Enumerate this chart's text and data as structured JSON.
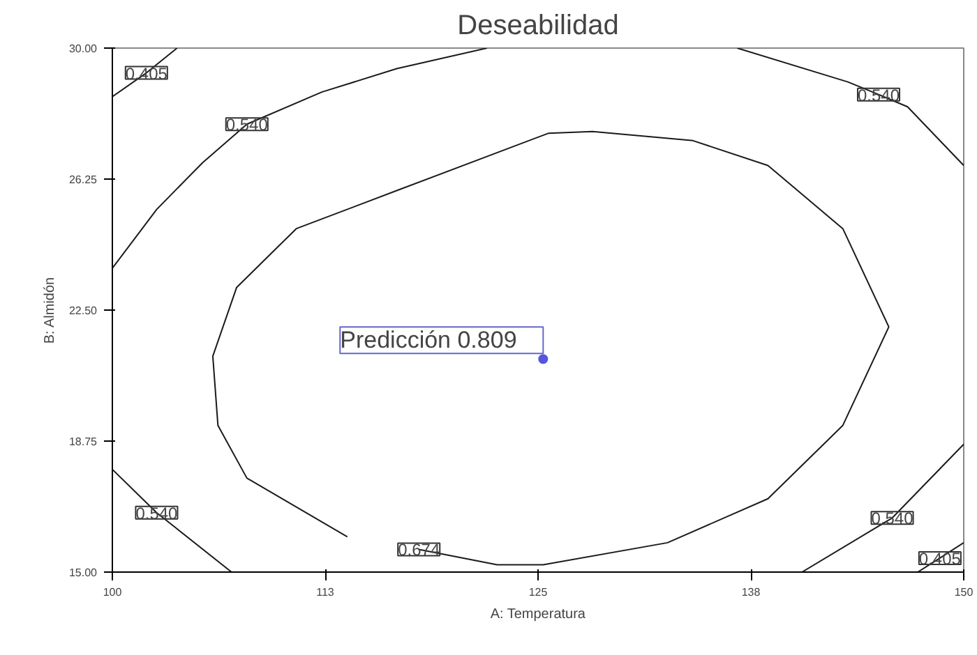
{
  "chart_data": {
    "type": "line",
    "title": "Deseabilidad",
    "xlabel": "A: Temperatura",
    "ylabel": "B: Almidón",
    "xlim": [
      100,
      150
    ],
    "ylim": [
      15,
      30
    ],
    "xticks": [
      100,
      {
        "value": 112.5,
        "label": "113"
      },
      125,
      {
        "value": 137.5,
        "label": "138"
      },
      150
    ],
    "yticks": [
      {
        "value": 15,
        "label": "15.00"
      },
      18.75,
      {
        "value": 22.5,
        "label": "22.50"
      },
      26.25,
      {
        "value": 30,
        "label": "30.00"
      }
    ],
    "grid": false,
    "line_style": "solid",
    "marker": "none",
    "series": [
      {
        "color": "#1a1a1a",
        "x": [
          100,
          102.6,
          105.3,
          107.9,
          112.3,
          116.7,
          122.0
        ],
        "values": [
          23.7,
          25.38,
          26.72,
          27.82,
          28.74,
          29.41,
          30
        ]
      },
      {
        "color": "#1a1a1a",
        "x": [
          100,
          102.0,
          103.8
        ],
        "values": [
          28.61,
          29.29,
          30
        ]
      },
      {
        "color": "#1a1a1a",
        "x": [
          136.7,
          143.2,
          145.0,
          146.7,
          150
        ],
        "values": [
          30,
          29.03,
          28.67,
          28.32,
          26.64
        ]
      },
      {
        "color": "#1a1a1a",
        "x": [
          118.0,
          122.6,
          125.3,
          132.6,
          138.5,
          142.9,
          145.6,
          142.9,
          138.5,
          134.1,
          128.2,
          125.6,
          116.7,
          110.8,
          107.3,
          105.9,
          106.2,
          107.9,
          113.8
        ],
        "values": [
          15.65,
          15.21,
          15.21,
          15.84,
          17.1,
          19.2,
          22.02,
          24.83,
          26.64,
          27.35,
          27.61,
          27.56,
          25.92,
          24.83,
          23.15,
          21.18,
          19.2,
          17.69,
          16.01
        ]
      },
      {
        "color": "#1a1a1a",
        "x": [
          100,
          102.6,
          107.0
        ],
        "values": [
          17.94,
          16.7,
          15
        ]
      },
      {
        "color": "#1a1a1a",
        "x": [
          140.5,
          145.8,
          150
        ],
        "values": [
          15,
          16.55,
          18.66
        ]
      },
      {
        "color": "#1a1a1a",
        "x": [
          147.3,
          148.6,
          150
        ],
        "values": [
          15,
          15.4,
          15.84
        ]
      },
      {
        "type": "scatter",
        "marker": "circle",
        "color": "#5555dd",
        "x": [
          125.3
        ],
        "values": [
          21.1
        ]
      }
    ],
    "annotations": [
      {
        "text": "0.405",
        "x": 102.0,
        "y": 29.29
      },
      {
        "text": "0.540",
        "x": 107.9,
        "y": 27.82
      },
      {
        "text": "0.540",
        "x": 145.0,
        "y": 28.67
      },
      {
        "text": "0.540",
        "x": 102.6,
        "y": 16.7
      },
      {
        "text": "0.674",
        "x": 118.0,
        "y": 15.65
      },
      {
        "text": "0.540",
        "x": 145.8,
        "y": 16.55
      },
      {
        "text": "0.405",
        "x": 148.6,
        "y": 15.4
      },
      {
        "text": "Predicción     0.809",
        "x": 125.3,
        "y": 21.1
      }
    ]
  }
}
